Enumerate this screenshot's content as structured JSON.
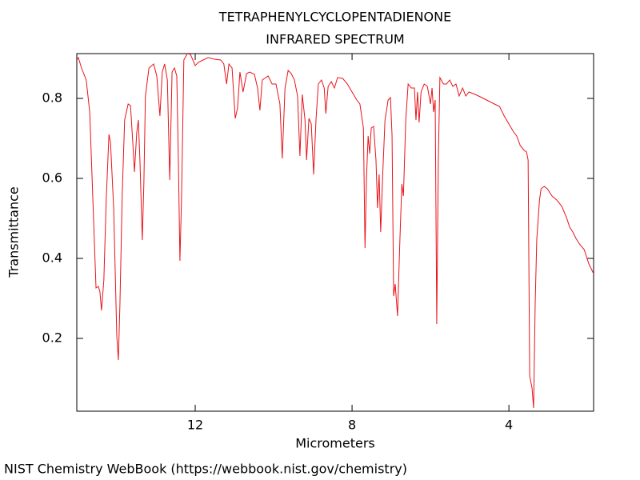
{
  "chart_data": {
    "type": "line",
    "title": "TETRAPHENYLCYCLOPENTADIENONE",
    "subtitle": "INFRARED SPECTRUM",
    "x_label": "Micrometers",
    "y_label": "Transmittance",
    "footer": "NIST Chemistry WebBook (https://webbook.nist.gov/chemistry)",
    "color": "#e8131a",
    "xlim": [
      15.02,
      1.84
    ],
    "ylim": [
      0.018,
      0.912
    ],
    "xticks": [
      12,
      8,
      4
    ],
    "yticks": [
      0.2,
      0.4,
      0.6,
      0.8
    ],
    "x": [
      15.02,
      14.98,
      14.9,
      14.78,
      14.69,
      14.61,
      14.53,
      14.47,
      14.43,
      14.39,
      14.33,
      14.27,
      14.2,
      14.16,
      14.08,
      14.0,
      13.96,
      13.92,
      13.86,
      13.8,
      13.71,
      13.65,
      13.59,
      13.55,
      13.49,
      13.45,
      13.41,
      13.35,
      13.31,
      13.27,
      13.18,
      13.06,
      12.98,
      12.9,
      12.84,
      12.78,
      12.71,
      12.65,
      12.59,
      12.53,
      12.47,
      12.43,
      12.39,
      12.35,
      12.29,
      12.2,
      12.12,
      12.0,
      11.92,
      11.8,
      11.67,
      11.51,
      11.35,
      11.27,
      11.2,
      11.14,
      11.06,
      10.98,
      10.92,
      10.86,
      10.78,
      10.69,
      10.61,
      10.49,
      10.41,
      10.35,
      10.29,
      10.14,
      10.04,
      9.94,
      9.84,
      9.78,
      9.71,
      9.63,
      9.55,
      9.47,
      9.39,
      9.33,
      9.27,
      9.2,
      9.16,
      9.1,
      9.04,
      8.98,
      8.92,
      8.86,
      8.78,
      8.71,
      8.67,
      8.61,
      8.53,
      8.45,
      8.37,
      8.24,
      8.12,
      8.0,
      7.88,
      7.8,
      7.71,
      7.67,
      7.63,
      7.59,
      7.55,
      7.51,
      7.45,
      7.39,
      7.35,
      7.31,
      7.27,
      7.22,
      7.16,
      7.08,
      7.02,
      6.98,
      6.94,
      6.9,
      6.84,
      6.78,
      6.73,
      6.69,
      6.63,
      6.57,
      6.49,
      6.41,
      6.37,
      6.33,
      6.29,
      6.24,
      6.16,
      6.08,
      6.0,
      5.96,
      5.92,
      5.88,
      5.84,
      5.8,
      5.76,
      5.67,
      5.59,
      5.51,
      5.43,
      5.35,
      5.27,
      5.18,
      5.1,
      5.02,
      4.86,
      4.69,
      4.53,
      4.37,
      4.24,
      4.12,
      4.0,
      3.88,
      3.8,
      3.71,
      3.61,
      3.55,
      3.51,
      3.47,
      3.41,
      3.37,
      3.33,
      3.29,
      3.22,
      3.18,
      3.1,
      3.02,
      2.9,
      2.78,
      2.65,
      2.53,
      2.45,
      2.37,
      2.29,
      2.2,
      2.08,
      1.96,
      1.84
    ],
    "values": [
      0.896,
      0.902,
      0.876,
      0.846,
      0.766,
      0.546,
      0.326,
      0.33,
      0.316,
      0.27,
      0.346,
      0.546,
      0.71,
      0.69,
      0.526,
      0.206,
      0.146,
      0.286,
      0.566,
      0.746,
      0.786,
      0.782,
      0.686,
      0.616,
      0.716,
      0.746,
      0.646,
      0.446,
      0.586,
      0.806,
      0.876,
      0.886,
      0.856,
      0.756,
      0.866,
      0.886,
      0.846,
      0.596,
      0.866,
      0.876,
      0.856,
      0.646,
      0.394,
      0.546,
      0.896,
      0.912,
      0.91,
      0.882,
      0.89,
      0.896,
      0.902,
      0.898,
      0.896,
      0.886,
      0.836,
      0.886,
      0.876,
      0.75,
      0.776,
      0.866,
      0.816,
      0.862,
      0.866,
      0.86,
      0.826,
      0.77,
      0.846,
      0.856,
      0.836,
      0.836,
      0.786,
      0.65,
      0.826,
      0.87,
      0.862,
      0.846,
      0.806,
      0.656,
      0.81,
      0.746,
      0.646,
      0.75,
      0.736,
      0.61,
      0.746,
      0.836,
      0.846,
      0.826,
      0.762,
      0.83,
      0.842,
      0.826,
      0.852,
      0.85,
      0.836,
      0.816,
      0.796,
      0.786,
      0.726,
      0.426,
      0.606,
      0.706,
      0.662,
      0.726,
      0.73,
      0.646,
      0.526,
      0.61,
      0.466,
      0.606,
      0.746,
      0.796,
      0.802,
      0.706,
      0.306,
      0.336,
      0.256,
      0.446,
      0.586,
      0.556,
      0.746,
      0.836,
      0.826,
      0.826,
      0.746,
      0.816,
      0.74,
      0.816,
      0.836,
      0.83,
      0.786,
      0.826,
      0.766,
      0.796,
      0.236,
      0.646,
      0.852,
      0.836,
      0.836,
      0.846,
      0.83,
      0.836,
      0.806,
      0.826,
      0.806,
      0.816,
      0.81,
      0.802,
      0.794,
      0.786,
      0.78,
      0.756,
      0.736,
      0.716,
      0.706,
      0.682,
      0.67,
      0.666,
      0.646,
      0.106,
      0.076,
      0.026,
      0.286,
      0.446,
      0.546,
      0.574,
      0.58,
      0.574,
      0.556,
      0.546,
      0.53,
      0.502,
      0.478,
      0.466,
      0.45,
      0.436,
      0.422,
      0.386,
      0.362
    ]
  }
}
